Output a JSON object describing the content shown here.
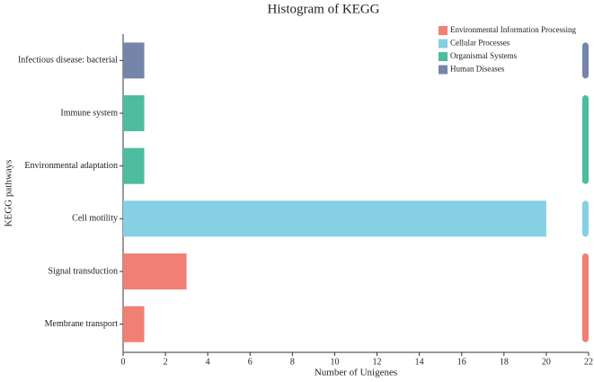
{
  "chart_data": {
    "type": "bar",
    "orientation": "horizontal",
    "title": "Histogram of KEGG",
    "x_label": "Number of Unigenes",
    "y_label": "KEGG pathways",
    "categories": [
      "Infectious disease: bacterial",
      "Immune system",
      "Environmental adaptation",
      "Cell motility",
      "Signal transduction",
      "Membrane transport"
    ],
    "series": [
      {
        "name": "Environmental Information Processing",
        "color": "#f08073",
        "values": [
          null,
          null,
          null,
          null,
          3,
          1
        ]
      },
      {
        "name": "Cellular Processes",
        "color": "#85d0e3",
        "values": [
          null,
          null,
          null,
          20,
          null,
          null
        ]
      },
      {
        "name": "Organismal Systems",
        "color": "#4dbc9f",
        "values": [
          null,
          1,
          1,
          null,
          null,
          null
        ]
      },
      {
        "name": "Human Diseases",
        "color": "#7585aa",
        "values": [
          1,
          null,
          null,
          null,
          null,
          null
        ]
      }
    ],
    "xlim": [
      0,
      22
    ],
    "xticks": [
      0,
      2,
      4,
      6,
      8,
      10,
      12,
      14,
      16,
      18,
      20,
      22
    ],
    "legend": "top-right"
  }
}
